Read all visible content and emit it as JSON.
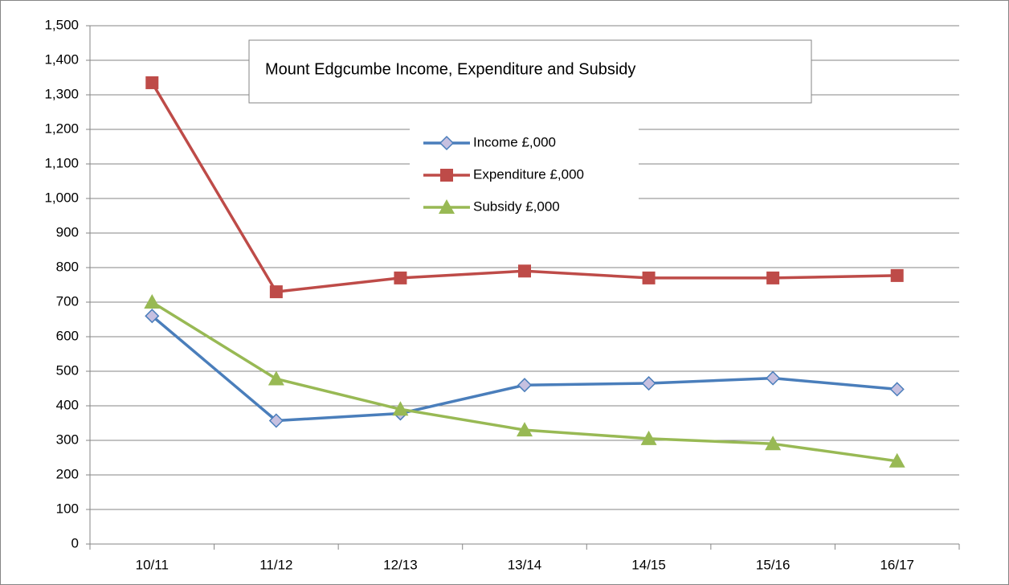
{
  "chart_data": {
    "type": "line",
    "title": "Mount Edgcumbe Income, Expenditure and Subsidy",
    "categories": [
      "10/11",
      "11/12",
      "12/13",
      "13/14",
      "14/15",
      "15/16",
      "16/17"
    ],
    "series": [
      {
        "name": "Income £,000",
        "color": "#4a7ebb",
        "marker": "diamond",
        "values": [
          660,
          357,
          378,
          460,
          465,
          480,
          448
        ]
      },
      {
        "name": "Expenditure £,000",
        "color": "#be4b48",
        "marker": "square",
        "values": [
          1335,
          730,
          770,
          790,
          770,
          770,
          777
        ]
      },
      {
        "name": "Subsidy £,000",
        "color": "#98b954",
        "marker": "triangle",
        "values": [
          700,
          478,
          390,
          330,
          305,
          290,
          240
        ]
      }
    ],
    "ylim": [
      0,
      1500
    ],
    "yticks": [
      0,
      100,
      200,
      300,
      400,
      500,
      600,
      700,
      800,
      900,
      {
        "value": 1000,
        "label": "1,000"
      },
      {
        "value": 1100,
        "label": "1,100"
      },
      {
        "value": 1200,
        "label": "1,200"
      },
      {
        "value": 1300,
        "label": "1,300"
      },
      {
        "value": 1400,
        "label": "1,400"
      },
      {
        "value": 1500,
        "label": "1,500"
      }
    ],
    "grid": true
  }
}
